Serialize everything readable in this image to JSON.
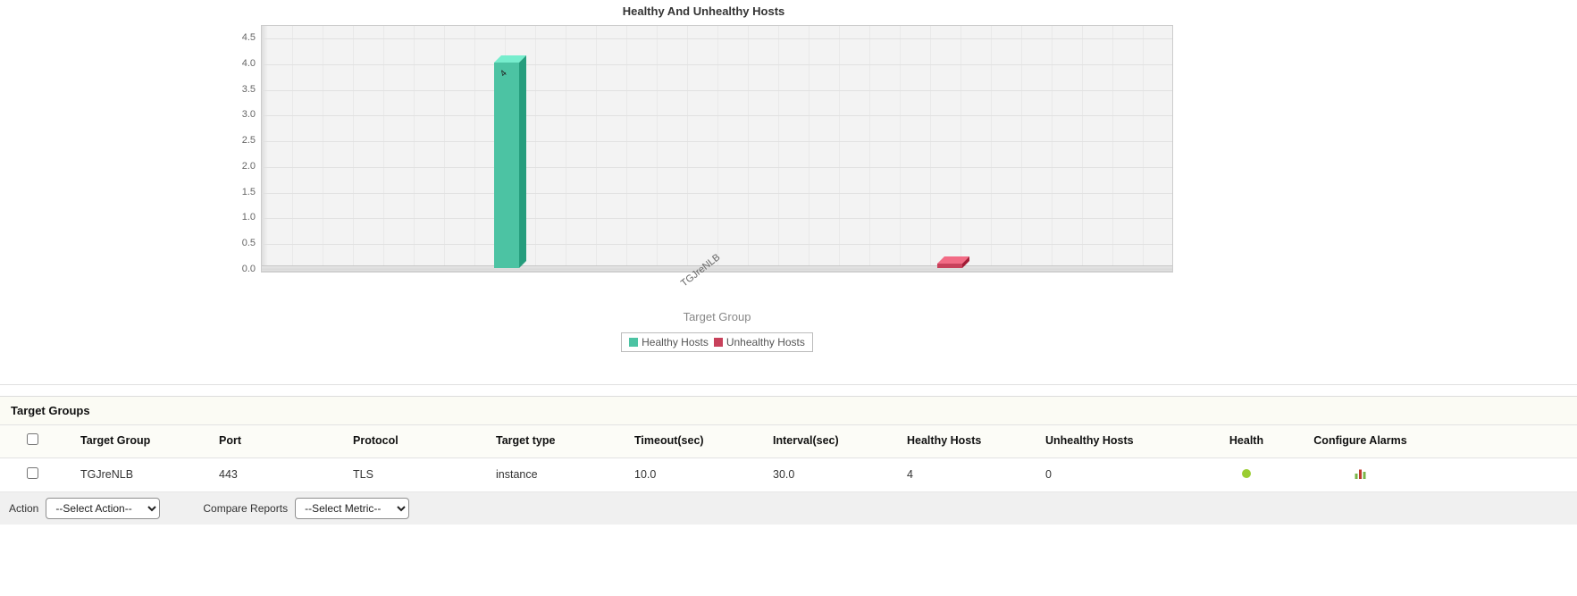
{
  "chart_data": {
    "type": "bar",
    "title": "Healthy And Unhealthy Hosts",
    "categories": [
      "TGJreNLB"
    ],
    "series": [
      {
        "name": "Healthy Hosts",
        "values": [
          4
        ],
        "color": "#4cc3a3"
      },
      {
        "name": "Unhealthy Hosts",
        "values": [
          0
        ],
        "color": "#c8415b"
      }
    ],
    "xlabel": "Target Group",
    "ylabel": "",
    "ylim": [
      0,
      4.5
    ],
    "ytick_step": 0.5,
    "grid": true,
    "legend_position": "bottom"
  },
  "table": {
    "section_title": "Target Groups",
    "columns": [
      "Target Group",
      "Port",
      "Protocol",
      "Target type",
      "Timeout(sec)",
      "Interval(sec)",
      "Healthy Hosts",
      "Unhealthy Hosts",
      "Health",
      "Configure Alarms"
    ],
    "rows": [
      {
        "target_group": "TGJreNLB",
        "port": "443",
        "protocol": "TLS",
        "target_type": "instance",
        "timeout_sec": "10.0",
        "interval_sec": "30.0",
        "healthy_hosts": "4",
        "unhealthy_hosts": "0",
        "health_status_color": "#9acd32",
        "configure_alarms_icon": "alarm-chart-icon"
      }
    ]
  },
  "action_bar": {
    "action_label": "Action",
    "action_select_value": "--Select Action--",
    "compare_reports_label": "Compare Reports",
    "metric_select_value": "--Select Metric--"
  }
}
